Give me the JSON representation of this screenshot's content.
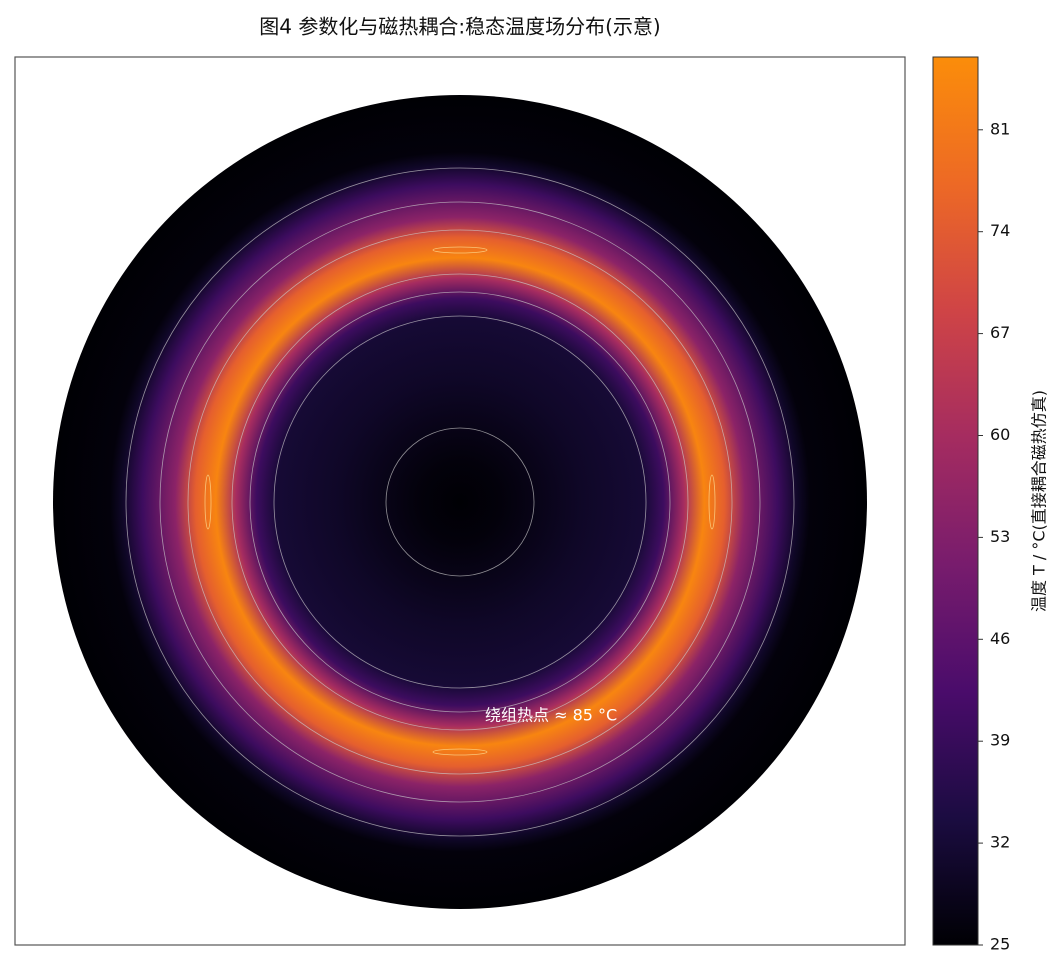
{
  "chart_data": {
    "type": "radial_heatmap",
    "title": "图4 参数化与磁热耦合:稳态温度场分布(示意)",
    "annotation": "绕组热点 ≈ 85 °C",
    "colorbar_label": "温度 T / °C(直接耦合磁热仿真)",
    "profile": {
      "r": [
        0,
        0.1,
        0.3,
        0.45,
        0.5,
        0.55,
        0.6,
        0.65,
        0.7,
        0.78,
        0.83,
        0.86,
        1
      ],
      "values": [
        25,
        26,
        30,
        32,
        40,
        60,
        84,
        75,
        55,
        40,
        30,
        26,
        25
      ]
    },
    "clim": [
      25,
      86
    ],
    "cticks": [
      25,
      32,
      39,
      46,
      53,
      60,
      67,
      74,
      81
    ],
    "colormap": [
      "#000004",
      "#1b0c41",
      "#4a0c6b",
      "#781c6d",
      "#a52c60",
      "#cf4446",
      "#ed6925",
      "#fb8d0a"
    ]
  }
}
